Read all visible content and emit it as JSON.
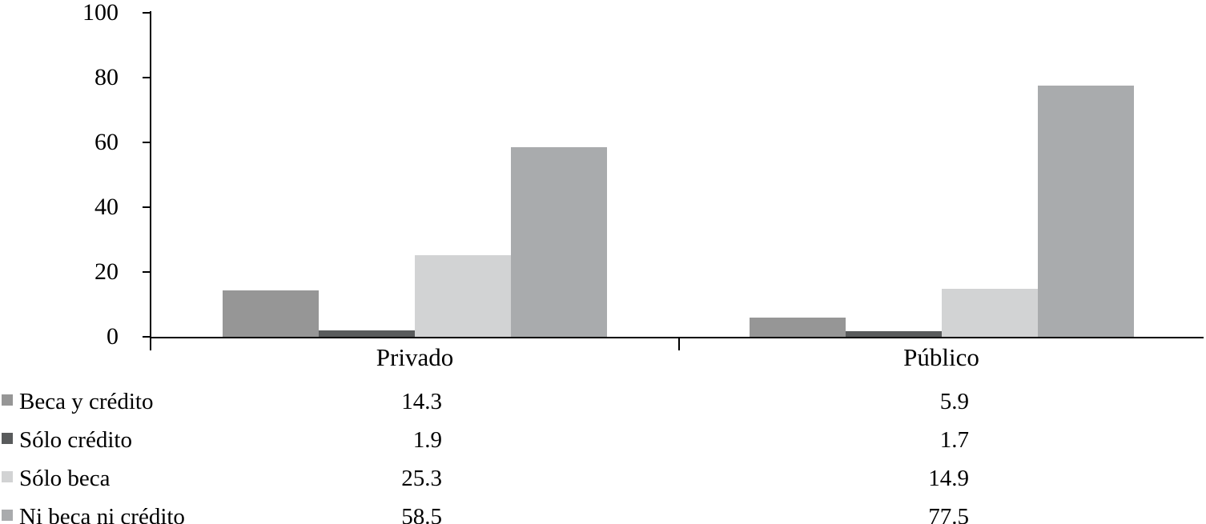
{
  "chart_data": {
    "type": "bar",
    "title": "",
    "categories": [
      "Privado",
      "Público"
    ],
    "series": [
      {
        "name": "Beca y crédito",
        "color": "#969696",
        "values": [
          14.3,
          5.9
        ]
      },
      {
        "name": "Sólo crédito",
        "color": "#595b5c",
        "values": [
          1.9,
          1.7
        ]
      },
      {
        "name": "Sólo beca",
        "color": "#d2d3d4",
        "values": [
          25.3,
          14.9
        ]
      },
      {
        "name": "Ni beca ni crédito",
        "color": "#a9abad",
        "values": [
          58.5,
          77.5
        ]
      }
    ],
    "y_axis": {
      "min": 0,
      "max": 100,
      "tick_interval": 20,
      "tick_labels": [
        "0",
        "20",
        "40",
        "60",
        "80",
        "100"
      ]
    },
    "x_axis": {
      "label": ""
    },
    "grid": false,
    "legend_position": "bottom-left",
    "data_table_shown": true,
    "axis_color": "#000000",
    "background_color": "#ffffff"
  }
}
